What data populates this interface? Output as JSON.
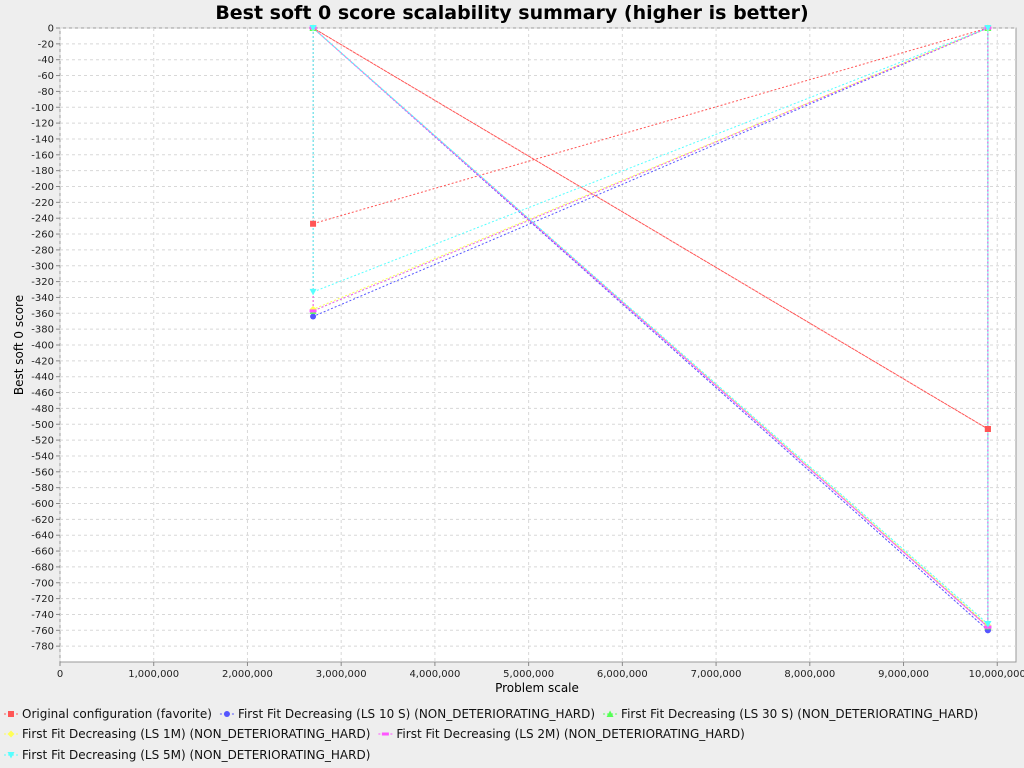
{
  "chart_data": {
    "type": "line",
    "title": "Best soft 0 score scalability summary (higher is better)",
    "xlabel": "Problem scale",
    "ylabel": "Best soft 0 score",
    "xlim": [
      0,
      10200000
    ],
    "ylim": [
      -800,
      0
    ],
    "x_ticks": [
      0,
      1000000,
      2000000,
      3000000,
      4000000,
      5000000,
      6000000,
      7000000,
      8000000,
      9000000,
      10000000
    ],
    "x_tick_labels": [
      "0",
      "1,000,000",
      "2,000,000",
      "3,000,000",
      "4,000,000",
      "5,000,000",
      "6,000,000",
      "7,000,000",
      "8,000,000",
      "9,000,000",
      "10,000,000"
    ],
    "y_ticks": [
      0,
      -20,
      -40,
      -60,
      -80,
      -100,
      -120,
      -140,
      -160,
      -180,
      -200,
      -220,
      -240,
      -260,
      -280,
      -300,
      -320,
      -340,
      -360,
      -380,
      -400,
      -420,
      -440,
      -460,
      -480,
      -500,
      -520,
      -540,
      -560,
      -580,
      -600,
      -620,
      -640,
      -660,
      -680,
      -700,
      -720,
      -740,
      -760,
      -780
    ],
    "grid": true,
    "legend_position": "bottom",
    "series": [
      {
        "name": "Original configuration (favorite)",
        "color": "#ff5555",
        "marker": "square",
        "points": [
          [
            2700000,
            0
          ],
          [
            2700000,
            -247
          ],
          [
            9900000,
            0
          ],
          [
            9900000,
            -506
          ],
          [
            2700000,
            0
          ],
          [
            9900000,
            -506
          ]
        ]
      },
      {
        "name": "First Fit Decreasing (LS 10 S) (NON_DETERIORATING_HARD)",
        "color": "#5555ff",
        "marker": "circle",
        "points": [
          [
            2700000,
            0
          ],
          [
            2700000,
            -364
          ],
          [
            9900000,
            0
          ],
          [
            9900000,
            -760
          ],
          [
            2700000,
            0
          ],
          [
            9900000,
            -760
          ]
        ]
      },
      {
        "name": "First Fit Decreasing (LS 30 S) (NON_DETERIORATING_HARD)",
        "color": "#55ff55",
        "marker": "triangle-up",
        "points": [
          [
            2700000,
            0
          ],
          [
            2700000,
            -357
          ],
          [
            9900000,
            0
          ],
          [
            9900000,
            -755
          ],
          [
            2700000,
            0
          ],
          [
            9900000,
            -755
          ]
        ]
      },
      {
        "name": "First Fit Decreasing (LS 1M) (NON_DETERIORATING_HARD)",
        "color": "#ffff55",
        "marker": "diamond",
        "points": [
          [
            2700000,
            0
          ],
          [
            2700000,
            -355
          ],
          [
            9900000,
            0
          ],
          [
            9900000,
            -754
          ],
          [
            2700000,
            0
          ],
          [
            9900000,
            -754
          ]
        ]
      },
      {
        "name": "First Fit Decreasing (LS 2M) (NON_DETERIORATING_HARD)",
        "color": "#ff55ff",
        "marker": "rect",
        "points": [
          [
            2700000,
            0
          ],
          [
            2700000,
            -357
          ],
          [
            9900000,
            0
          ],
          [
            9900000,
            -756
          ],
          [
            2700000,
            0
          ],
          [
            9900000,
            -756
          ]
        ]
      },
      {
        "name": "First Fit Decreasing (LS 5M) (NON_DETERIORATING_HARD)",
        "color": "#55ffff",
        "marker": "triangle-down",
        "points": [
          [
            2700000,
            0
          ],
          [
            2700000,
            -333
          ],
          [
            9900000,
            0
          ],
          [
            9900000,
            -752
          ],
          [
            2700000,
            0
          ],
          [
            9900000,
            -752
          ]
        ]
      }
    ]
  }
}
